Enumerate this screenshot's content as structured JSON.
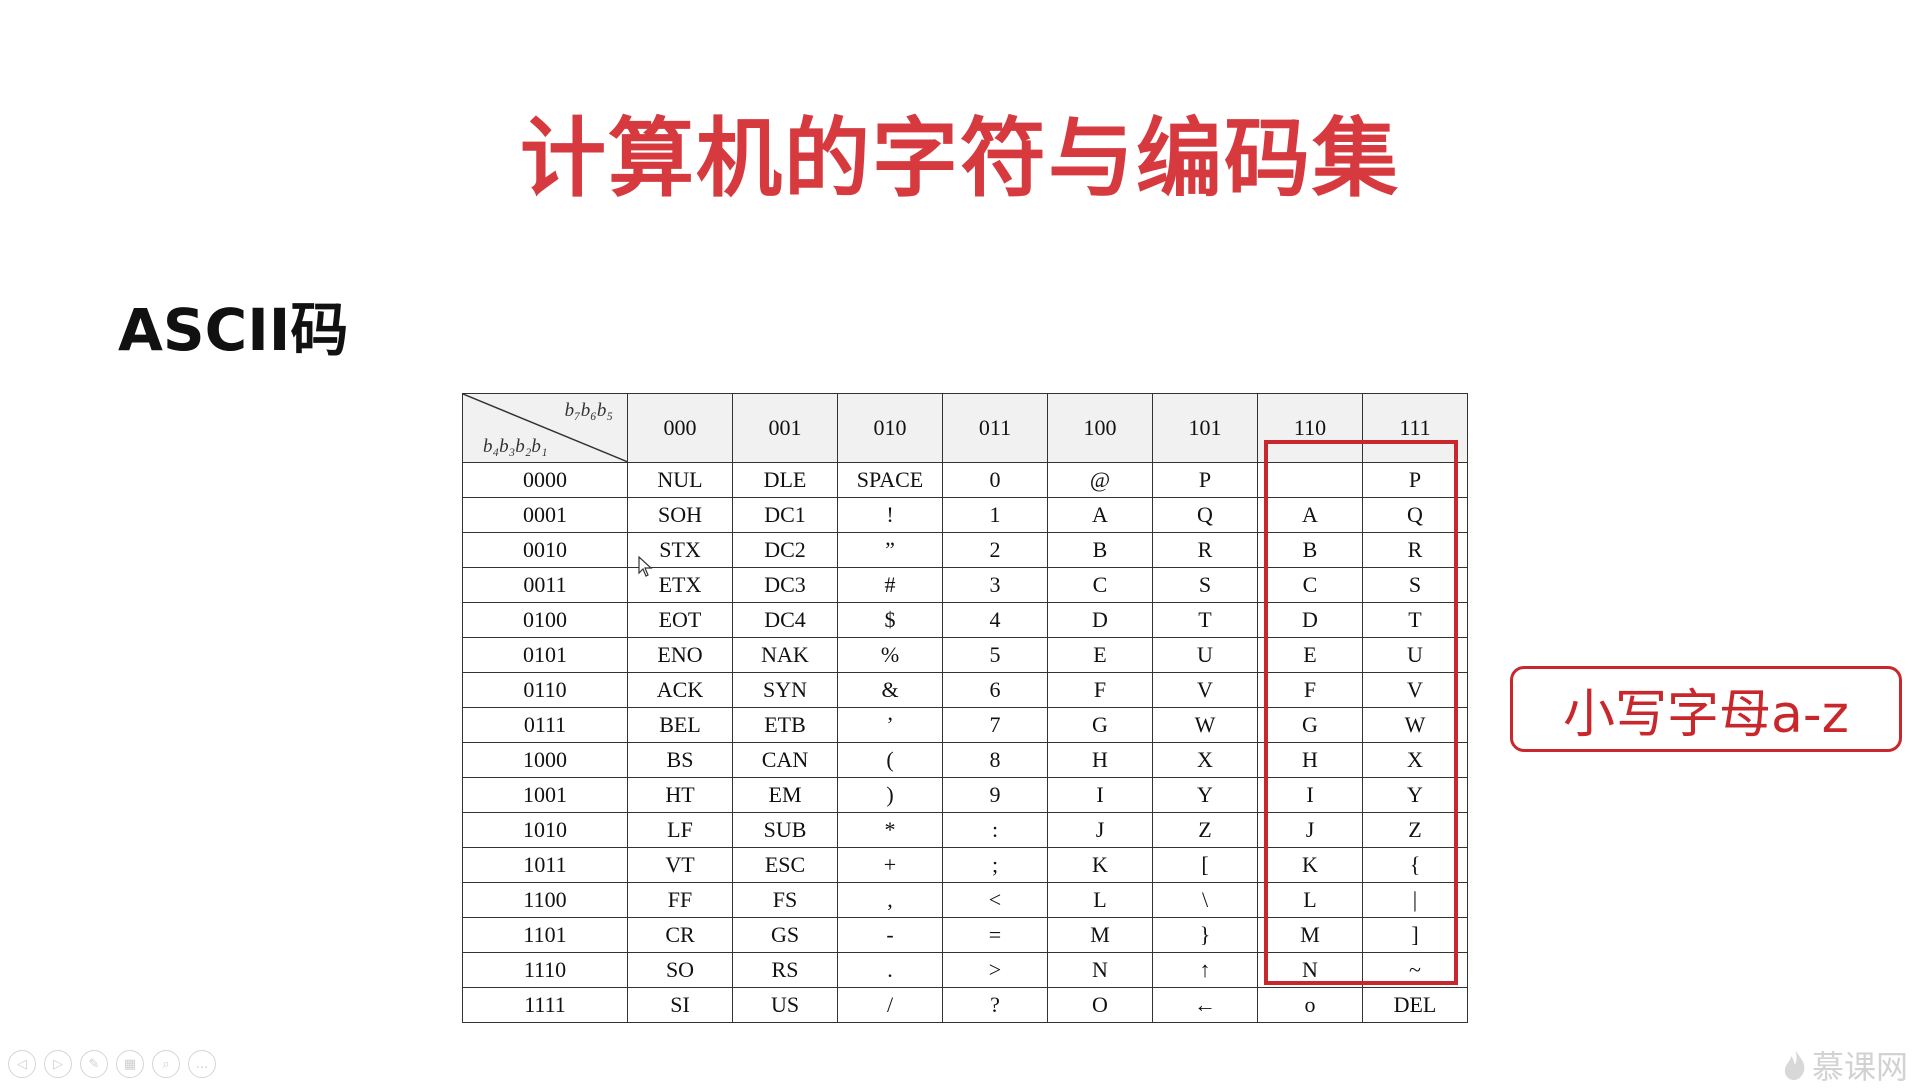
{
  "slide": {
    "title": "计算机的字符与编码集",
    "section_title": "ASCII码"
  },
  "table": {
    "corner_top": "b₇b₆b₅",
    "corner_bottom": "b₄b₃b₂b₁",
    "headers": [
      "000",
      "001",
      "010",
      "011",
      "100",
      "101",
      "110",
      "111"
    ],
    "rows": [
      [
        "0000",
        "NUL",
        "DLE",
        "SPACE",
        "0",
        "@",
        "P",
        "",
        "P"
      ],
      [
        "0001",
        "SOH",
        "DC1",
        "!",
        "1",
        "A",
        "Q",
        "A",
        "Q"
      ],
      [
        "0010",
        "STX",
        "DC2",
        "”",
        "2",
        "B",
        "R",
        "B",
        "R"
      ],
      [
        "0011",
        "ETX",
        "DC3",
        "#",
        "3",
        "C",
        "S",
        "C",
        "S"
      ],
      [
        "0100",
        "EOT",
        "DC4",
        "$",
        "4",
        "D",
        "T",
        "D",
        "T"
      ],
      [
        "0101",
        "ENO",
        "NAK",
        "%",
        "5",
        "E",
        "U",
        "E",
        "U"
      ],
      [
        "0110",
        "ACK",
        "SYN",
        "&",
        "6",
        "F",
        "V",
        "F",
        "V"
      ],
      [
        "0111",
        "BEL",
        "ETB",
        "’",
        "7",
        "G",
        "W",
        "G",
        "W"
      ],
      [
        "1000",
        "BS",
        "CAN",
        "(",
        "8",
        "H",
        "X",
        "H",
        "X"
      ],
      [
        "1001",
        "HT",
        "EM",
        ")",
        "9",
        "I",
        "Y",
        "I",
        "Y"
      ],
      [
        "1010",
        "LF",
        "SUB",
        "*",
        ":",
        "J",
        "Z",
        "J",
        "Z"
      ],
      [
        "1011",
        "VT",
        "ESC",
        "+",
        ";",
        "K",
        "[",
        "K",
        "{"
      ],
      [
        "1100",
        "FF",
        "FS",
        ",",
        "<",
        "L",
        "\\",
        "L",
        "|"
      ],
      [
        "1101",
        "CR",
        "GS",
        "-",
        "=",
        "M",
        "}",
        "M",
        "]"
      ],
      [
        "1110",
        "SO",
        "RS",
        ".",
        ">",
        "N",
        "↑",
        "N",
        "~"
      ],
      [
        "1111",
        "SI",
        "US",
        "/",
        "?",
        "O",
        "←",
        "o",
        "DEL"
      ]
    ]
  },
  "callout": {
    "text": "小写字母a-z"
  },
  "watermark": {
    "text": "慕课网",
    "icon": "flame-logo-icon"
  },
  "toolbar": {
    "buttons": [
      {
        "name": "prev-slide-button",
        "glyph": "◁"
      },
      {
        "name": "next-slide-button",
        "glyph": "▷"
      },
      {
        "name": "pen-tool-button",
        "glyph": "✎"
      },
      {
        "name": "slides-overview-button",
        "glyph": "▦"
      },
      {
        "name": "zoom-button",
        "glyph": "⌕"
      },
      {
        "name": "more-options-button",
        "glyph": "…"
      }
    ]
  },
  "colors": {
    "title_red": "#d63a3f",
    "highlight_red": "#c8282c",
    "header_gray": "#f1f1f1"
  }
}
